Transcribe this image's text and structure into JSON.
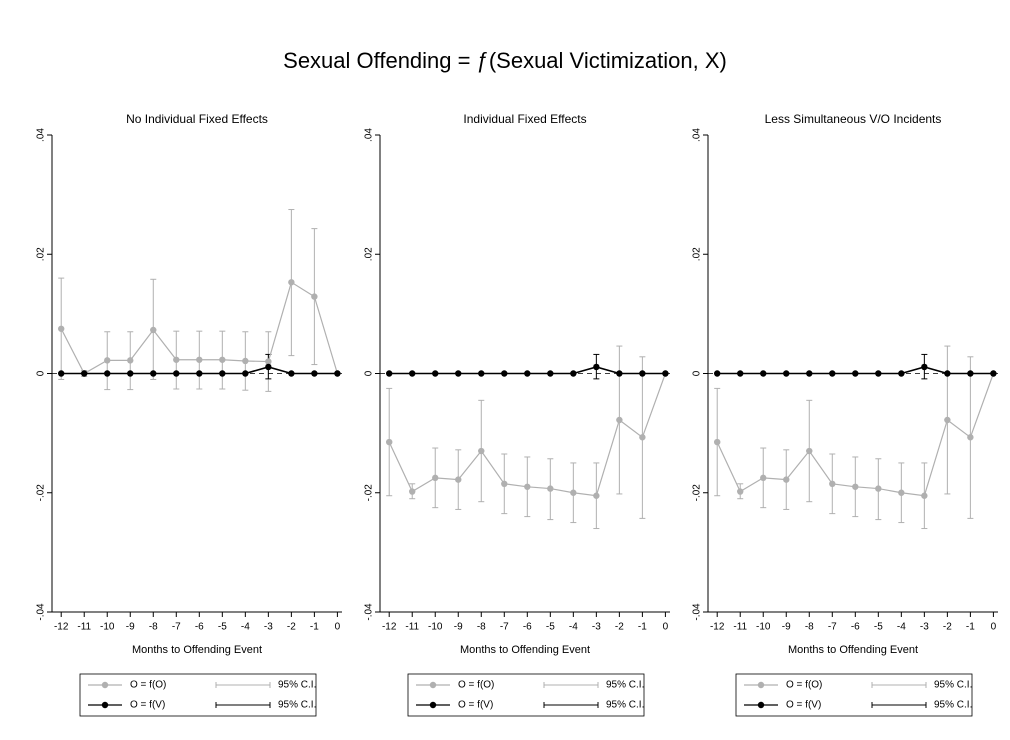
{
  "title": "Sexual Offending = ƒ(Sexual Victimization, X)",
  "chart_data": [
    {
      "type": "line",
      "title": "No Individual Fixed Effects",
      "xlabel": "Months to Offending Event",
      "x": [
        -12,
        -11,
        -10,
        -9,
        -8,
        -7,
        -6,
        -5,
        -4,
        -3,
        -2,
        -1,
        0
      ],
      "xticks": [
        -12,
        -11,
        -10,
        -9,
        -8,
        -7,
        -6,
        -5,
        -4,
        -3,
        -2,
        -1,
        0
      ],
      "xlim": [
        -12.4,
        0.2
      ],
      "ylim": [
        -0.04,
        0.04
      ],
      "yticks": [
        {
          "value": 0.04,
          "label": ".04"
        },
        {
          "value": 0.02,
          "label": ".02"
        },
        0,
        {
          "value": -0.02,
          "label": "-.02"
        },
        {
          "value": -0.04,
          "label": "-.04"
        }
      ],
      "series": [
        {
          "name": "O = f(O)",
          "ci_name": "95% C.I.",
          "color": "#b0b0b0",
          "values": [
            0.0075,
            0,
            0.0022,
            0.0022,
            0.0073,
            0.0023,
            0.0023,
            0.0023,
            0.0021,
            0.002,
            0.0153,
            0.0129,
            0
          ],
          "ci_low": [
            -0.001,
            -0.0005,
            -0.0027,
            -0.0027,
            -0.001,
            -0.0026,
            -0.0026,
            -0.0026,
            -0.0028,
            -0.003,
            0.003,
            0.0015,
            null
          ],
          "ci_high": [
            0.016,
            0.0005,
            0.007,
            0.007,
            0.0158,
            0.0071,
            0.0071,
            0.0071,
            0.007,
            0.007,
            0.0275,
            0.0243,
            null
          ]
        },
        {
          "name": "O = f(V)",
          "ci_name": "95% C.I.",
          "color": "#000000",
          "values": [
            0,
            0,
            0,
            0,
            0,
            0,
            0,
            0,
            0,
            0.0011,
            0,
            0,
            0
          ],
          "ci_low": [
            null,
            null,
            null,
            null,
            null,
            null,
            null,
            null,
            null,
            -0.0009,
            null,
            null,
            null
          ],
          "ci_high": [
            null,
            null,
            null,
            null,
            null,
            null,
            null,
            null,
            null,
            0.0032,
            null,
            null,
            null
          ]
        }
      ]
    },
    {
      "type": "line",
      "title": "Individual Fixed Effects",
      "xlabel": "Months to Offending Event",
      "x": [
        -12,
        -11,
        -10,
        -9,
        -8,
        -7,
        -6,
        -5,
        -4,
        -3,
        -2,
        -1,
        0
      ],
      "xticks": [
        -12,
        -11,
        -10,
        -9,
        -8,
        -7,
        -6,
        -5,
        -4,
        -3,
        -2,
        -1,
        0
      ],
      "xlim": [
        -12.4,
        0.2
      ],
      "ylim": [
        -0.04,
        0.04
      ],
      "yticks": [
        {
          "value": 0.04,
          "label": ".04"
        },
        {
          "value": 0.02,
          "label": ".02"
        },
        0,
        {
          "value": -0.02,
          "label": "-.02"
        },
        {
          "value": -0.04,
          "label": "-.04"
        }
      ],
      "series": [
        {
          "name": "O = f(O)",
          "ci_name": "95% C.I.",
          "color": "#b0b0b0",
          "values": [
            -0.0115,
            -0.0198,
            -0.0175,
            -0.0178,
            -0.013,
            -0.0185,
            -0.019,
            -0.0193,
            -0.02,
            -0.0205,
            -0.0078,
            -0.0107,
            0
          ],
          "ci_low": [
            -0.0205,
            -0.021,
            -0.0225,
            -0.0228,
            -0.0215,
            -0.0235,
            -0.024,
            -0.0245,
            -0.025,
            -0.026,
            -0.0202,
            -0.0243,
            null
          ],
          "ci_high": [
            -0.0025,
            -0.0185,
            -0.0125,
            -0.0128,
            -0.0045,
            -0.0135,
            -0.014,
            -0.0143,
            -0.015,
            -0.015,
            0.0046,
            0.0028,
            null
          ]
        },
        {
          "name": "O = f(V)",
          "ci_name": "95% C.I.",
          "color": "#000000",
          "values": [
            0,
            0,
            0,
            0,
            0,
            0,
            0,
            0,
            0,
            0.0011,
            0,
            0,
            0
          ],
          "ci_low": [
            null,
            null,
            null,
            null,
            null,
            null,
            null,
            null,
            null,
            -0.0009,
            null,
            null,
            null
          ],
          "ci_high": [
            null,
            null,
            null,
            null,
            null,
            null,
            null,
            null,
            null,
            0.0032,
            null,
            null,
            null
          ]
        }
      ]
    },
    {
      "type": "line",
      "title": "Less Simultaneous V/O Incidents",
      "xlabel": "Months to Offending Event",
      "x": [
        -12,
        -11,
        -10,
        -9,
        -8,
        -7,
        -6,
        -5,
        -4,
        -3,
        -2,
        -1,
        0
      ],
      "xticks": [
        -12,
        -11,
        -10,
        -9,
        -8,
        -7,
        -6,
        -5,
        -4,
        -3,
        -2,
        -1,
        0
      ],
      "xlim": [
        -12.4,
        0.2
      ],
      "ylim": [
        -0.04,
        0.04
      ],
      "yticks": [
        {
          "value": 0.04,
          "label": ".04"
        },
        {
          "value": 0.02,
          "label": ".02"
        },
        0,
        {
          "value": -0.02,
          "label": "-.02"
        },
        {
          "value": -0.04,
          "label": "-.04"
        }
      ],
      "series": [
        {
          "name": "O = f(O)",
          "ci_name": "95% C.I.",
          "color": "#b0b0b0",
          "values": [
            -0.0115,
            -0.0198,
            -0.0175,
            -0.0178,
            -0.013,
            -0.0185,
            -0.019,
            -0.0193,
            -0.02,
            -0.0205,
            -0.0078,
            -0.0107,
            0
          ],
          "ci_low": [
            -0.0205,
            -0.021,
            -0.0225,
            -0.0228,
            -0.0215,
            -0.0235,
            -0.024,
            -0.0245,
            -0.025,
            -0.026,
            -0.0202,
            -0.0243,
            null
          ],
          "ci_high": [
            -0.0025,
            -0.0185,
            -0.0125,
            -0.0128,
            -0.0045,
            -0.0135,
            -0.014,
            -0.0143,
            -0.015,
            -0.015,
            0.0046,
            0.0028,
            null
          ]
        },
        {
          "name": "O = f(V)",
          "ci_name": "95% C.I.",
          "color": "#000000",
          "values": [
            0,
            0,
            0,
            0,
            0,
            0,
            0,
            0,
            0,
            0.0011,
            0,
            0,
            0
          ],
          "ci_low": [
            null,
            null,
            null,
            null,
            null,
            null,
            null,
            null,
            null,
            -0.0009,
            null,
            null,
            null
          ],
          "ci_high": [
            null,
            null,
            null,
            null,
            null,
            null,
            null,
            null,
            null,
            0.0032,
            null,
            null,
            null
          ]
        }
      ]
    }
  ]
}
